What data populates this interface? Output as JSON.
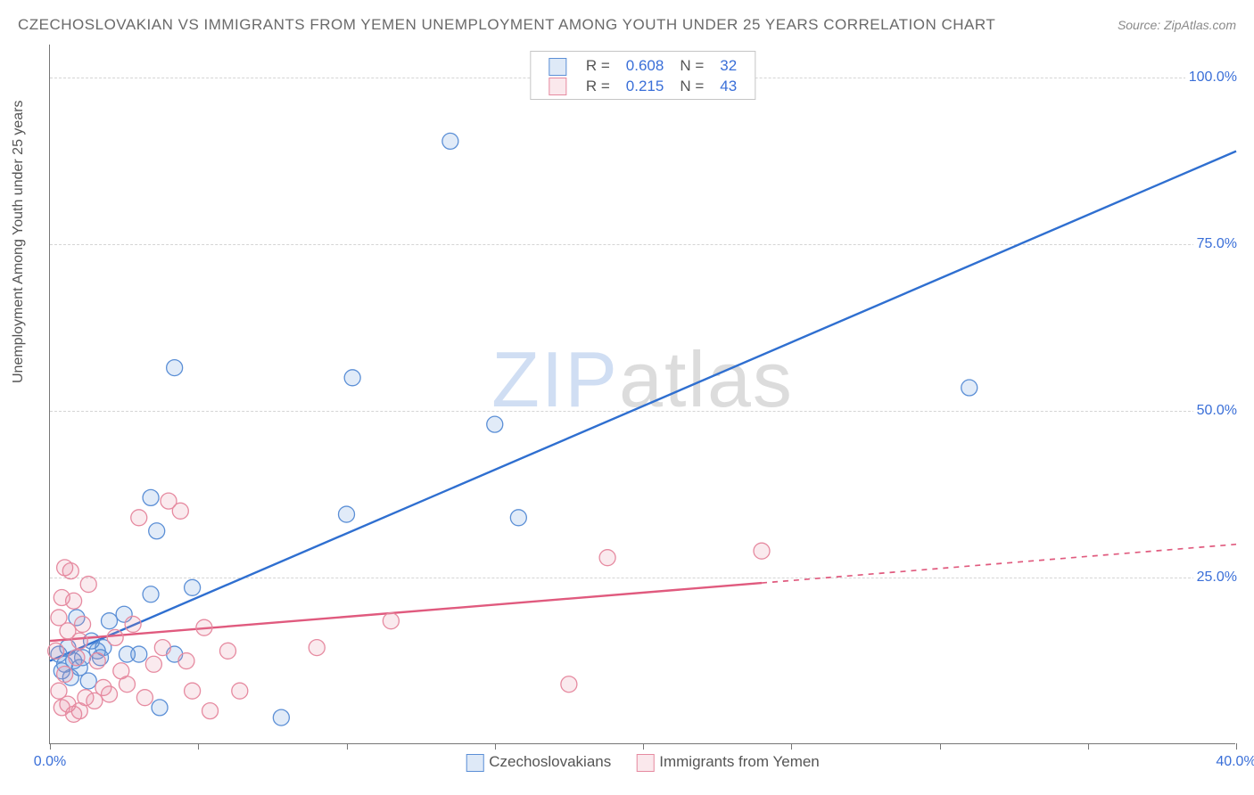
{
  "chart": {
    "type": "scatter",
    "title": "CZECHOSLOVAKIAN VS IMMIGRANTS FROM YEMEN UNEMPLOYMENT AMONG YOUTH UNDER 25 YEARS CORRELATION CHART",
    "source_label": "Source: ZipAtlas.com",
    "ylabel": "Unemployment Among Youth under 25 years",
    "watermark_a": "ZIP",
    "watermark_b": "atlas",
    "background_color": "#ffffff",
    "grid_color": "#d5d5d5",
    "axis_color": "#777777",
    "text_color": "#6a6a6a",
    "tick_label_color": "#3a6fd8",
    "xlim": [
      0,
      40
    ],
    "ylim": [
      0,
      105
    ],
    "xticks": [
      0,
      5,
      10,
      15,
      20,
      25,
      30,
      35,
      40
    ],
    "xtick_labels": {
      "0": "0.0%",
      "40": "40.0%"
    },
    "yticks": [
      25,
      50,
      75,
      100
    ],
    "ytick_labels": {
      "25": "25.0%",
      "50": "50.0%",
      "75": "75.0%",
      "100": "100.0%"
    },
    "marker_radius": 9,
    "marker_fill_opacity": 0.18,
    "marker_stroke_width": 1.3,
    "trend_line_width": 2.4,
    "series": [
      {
        "name": "Czechoslovakians",
        "color": "#5b8fd6",
        "line_color": "#2f6fd0",
        "R": "0.608",
        "N": "32",
        "trend": {
          "x1": 0,
          "y1": 12.5,
          "x2": 40,
          "y2": 89.0,
          "solid_until_x": 40
        },
        "points": [
          [
            0.3,
            13.5
          ],
          [
            0.4,
            11.0
          ],
          [
            0.5,
            12.0
          ],
          [
            0.6,
            14.5
          ],
          [
            0.7,
            10.0
          ],
          [
            0.8,
            12.5
          ],
          [
            0.9,
            19.0
          ],
          [
            1.0,
            11.5
          ],
          [
            1.1,
            13.0
          ],
          [
            1.3,
            9.5
          ],
          [
            1.4,
            15.5
          ],
          [
            1.6,
            14.0
          ],
          [
            1.7,
            13.0
          ],
          [
            1.8,
            14.5
          ],
          [
            2.0,
            18.5
          ],
          [
            2.5,
            19.5
          ],
          [
            2.6,
            13.5
          ],
          [
            3.0,
            13.5
          ],
          [
            3.4,
            22.5
          ],
          [
            3.4,
            37.0
          ],
          [
            3.6,
            32.0
          ],
          [
            3.7,
            5.5
          ],
          [
            4.2,
            13.5
          ],
          [
            4.2,
            56.5
          ],
          [
            4.8,
            23.5
          ],
          [
            7.8,
            4.0
          ],
          [
            10.0,
            34.5
          ],
          [
            10.2,
            55.0
          ],
          [
            13.5,
            90.5
          ],
          [
            15.0,
            48.0
          ],
          [
            15.8,
            34.0
          ],
          [
            31.0,
            53.5
          ]
        ]
      },
      {
        "name": "Immigrants from Yemen",
        "color": "#e68aa0",
        "line_color": "#e05a7e",
        "R": "0.215",
        "N": "43",
        "trend": {
          "x1": 0,
          "y1": 15.5,
          "x2": 40,
          "y2": 30.0,
          "solid_until_x": 24
        },
        "points": [
          [
            0.2,
            14.0
          ],
          [
            0.3,
            8.0
          ],
          [
            0.3,
            19.0
          ],
          [
            0.4,
            5.5
          ],
          [
            0.4,
            22.0
          ],
          [
            0.5,
            10.5
          ],
          [
            0.5,
            26.5
          ],
          [
            0.6,
            6.0
          ],
          [
            0.6,
            17.0
          ],
          [
            0.7,
            26.0
          ],
          [
            0.8,
            4.5
          ],
          [
            0.8,
            21.5
          ],
          [
            0.9,
            13.0
          ],
          [
            1.0,
            5.0
          ],
          [
            1.0,
            15.5
          ],
          [
            1.1,
            18.0
          ],
          [
            1.2,
            7.0
          ],
          [
            1.3,
            24.0
          ],
          [
            1.5,
            6.5
          ],
          [
            1.6,
            12.5
          ],
          [
            1.8,
            8.5
          ],
          [
            2.0,
            7.5
          ],
          [
            2.2,
            16.0
          ],
          [
            2.4,
            11.0
          ],
          [
            2.6,
            9.0
          ],
          [
            2.8,
            18.0
          ],
          [
            3.0,
            34.0
          ],
          [
            3.2,
            7.0
          ],
          [
            3.5,
            12.0
          ],
          [
            3.8,
            14.5
          ],
          [
            4.0,
            36.5
          ],
          [
            4.4,
            35.0
          ],
          [
            4.6,
            12.5
          ],
          [
            4.8,
            8.0
          ],
          [
            5.2,
            17.5
          ],
          [
            5.4,
            5.0
          ],
          [
            6.0,
            14.0
          ],
          [
            6.4,
            8.0
          ],
          [
            9.0,
            14.5
          ],
          [
            11.5,
            18.5
          ],
          [
            17.5,
            9.0
          ],
          [
            18.8,
            28.0
          ],
          [
            24.0,
            29.0
          ]
        ]
      }
    ],
    "legend_top": {
      "rows": [
        {
          "swatch": 0,
          "r_label": "R =",
          "n_label": "N ="
        },
        {
          "swatch": 1,
          "r_label": "R =",
          "n_label": "N ="
        }
      ]
    }
  }
}
